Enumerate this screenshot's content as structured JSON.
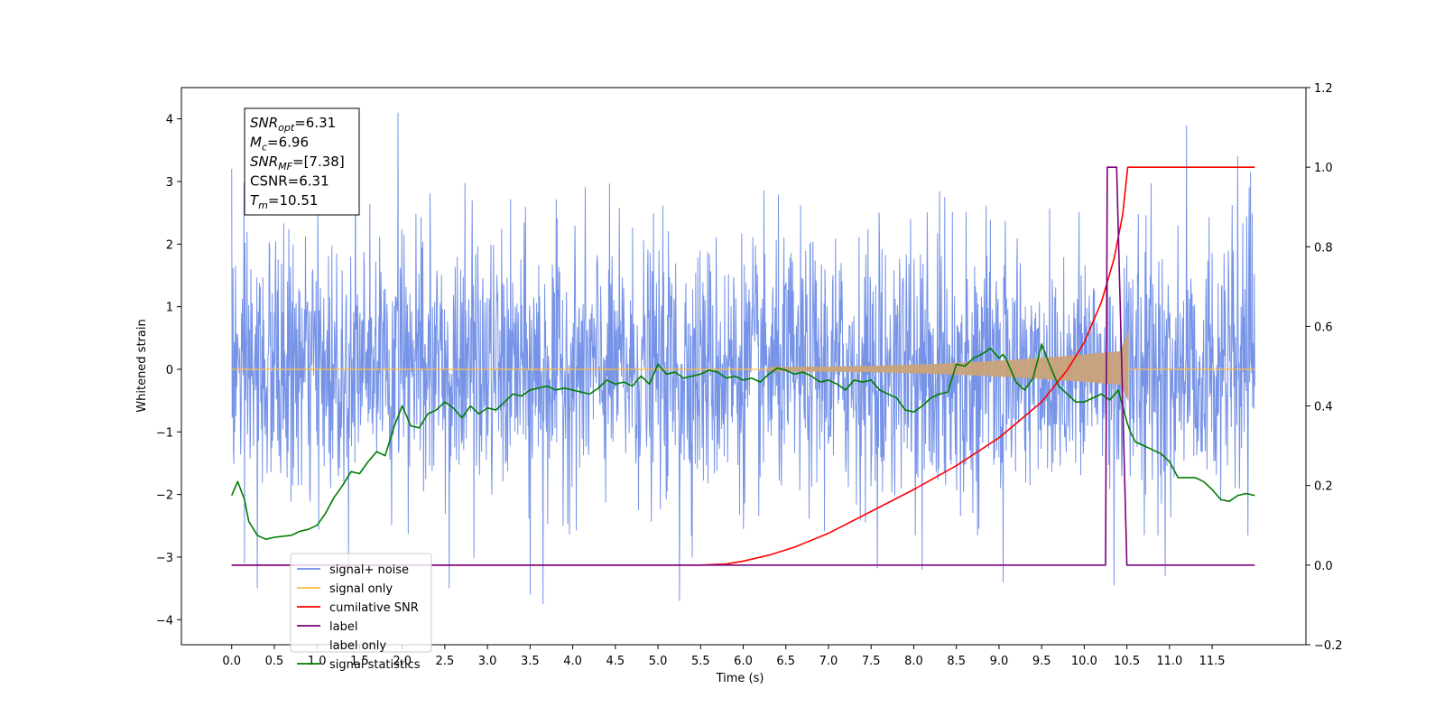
{
  "chart_data": {
    "type": "line",
    "title": "",
    "xlabel": "Time (s)",
    "ylabel": "Whitened strain",
    "xlim": [
      -0.59,
      12.6
    ],
    "ylim": [
      -4.4,
      4.5
    ],
    "y2lim": [
      -0.2,
      1.2
    ],
    "x_ticks": [
      0.0,
      0.5,
      1.0,
      1.5,
      2.0,
      2.5,
      3.0,
      3.5,
      4.0,
      4.5,
      5.0,
      5.5,
      6.0,
      6.5,
      7.0,
      7.5,
      8.0,
      8.5,
      9.0,
      9.5,
      10.0,
      10.5,
      11.0,
      11.5
    ],
    "x_tick_labels": [
      "0.0",
      "0.5",
      "1.0",
      "1.5",
      "2.0",
      "2.5",
      "3.0",
      "3.5",
      "4.0",
      "4.5",
      "5.0",
      "5.5",
      "6.0",
      "6.5",
      "7.0",
      "7.5",
      "8.0",
      "8.5",
      "9.0",
      "9.5",
      "10.0",
      "10.5",
      "11.0",
      "11.5"
    ],
    "y_ticks": [
      -4,
      -3,
      -2,
      -1,
      0,
      1,
      2,
      3,
      4
    ],
    "y_tick_labels": [
      "−4",
      "−3",
      "−2",
      "−1",
      "0",
      "1",
      "2",
      "3",
      "4"
    ],
    "y2_ticks": [
      -0.2,
      0.0,
      0.2,
      0.4,
      0.6,
      0.8,
      1.0,
      1.2
    ],
    "y2_tick_labels": [
      "−0.2",
      "0.0",
      "0.2",
      "0.4",
      "0.6",
      "0.8",
      "1.0",
      "1.2"
    ],
    "grid": false,
    "legend_position": "lower-left",
    "annotation": {
      "lines": [
        {
          "main": "SNR",
          "sub": "opt",
          "rest": "=6.31"
        },
        {
          "main": "M",
          "sub": "c",
          "rest": "=6.96"
        },
        {
          "main": "SNR",
          "sub": "MF",
          "rest": "=[7.38]"
        },
        {
          "main": "CSNR",
          "sub": "",
          "rest": "=6.31"
        },
        {
          "main": "T",
          "sub": "m",
          "rest": "=10.51"
        }
      ]
    },
    "series": [
      {
        "name": "signal+ noise",
        "axis": "left",
        "color": "#6f8de6",
        "x_start": 0.0,
        "x_end": 12.0,
        "noise_sigma": 1.0,
        "envelope_max": 3.3,
        "envelope_min": -3.2,
        "spikes": [
          {
            "x": 0.0,
            "y": 3.2
          },
          {
            "x": 0.15,
            "y": -3.1
          },
          {
            "x": 0.3,
            "y": -3.5
          },
          {
            "x": 1.45,
            "y": 3.7
          },
          {
            "x": 1.95,
            "y": 4.1
          },
          {
            "x": 2.55,
            "y": -3.5
          },
          {
            "x": 3.5,
            "y": -3.6
          },
          {
            "x": 3.65,
            "y": -3.75
          },
          {
            "x": 5.25,
            "y": -3.7
          },
          {
            "x": 8.1,
            "y": -3.2
          },
          {
            "x": 9.05,
            "y": -3.4
          },
          {
            "x": 10.35,
            "y": -3.45
          },
          {
            "x": 10.95,
            "y": -3.3
          },
          {
            "x": 11.2,
            "y": 3.9
          },
          {
            "x": 11.8,
            "y": 3.4
          }
        ]
      },
      {
        "name": "signal only",
        "axis": "left",
        "color": "#ffbf3f",
        "fill_color": "#c9a27a",
        "x_start": 0.0,
        "x_end": 12.0,
        "chirp_visible_from": 6.3,
        "merger_time": 10.5,
        "peak_amplitude": 0.6
      },
      {
        "name": "cumilative SNR",
        "axis": "right",
        "color": "#ff0000",
        "points": [
          [
            0.0,
            0.0
          ],
          [
            5.5,
            0.0
          ],
          [
            5.8,
            0.003
          ],
          [
            6.0,
            0.01
          ],
          [
            6.3,
            0.025
          ],
          [
            6.6,
            0.045
          ],
          [
            7.0,
            0.08
          ],
          [
            7.5,
            0.135
          ],
          [
            8.0,
            0.19
          ],
          [
            8.5,
            0.25
          ],
          [
            9.0,
            0.32
          ],
          [
            9.5,
            0.41
          ],
          [
            9.8,
            0.49
          ],
          [
            10.0,
            0.56
          ],
          [
            10.2,
            0.66
          ],
          [
            10.35,
            0.77
          ],
          [
            10.45,
            0.88
          ],
          [
            10.51,
            1.0
          ],
          [
            12.0,
            1.0
          ]
        ]
      },
      {
        "name": "label",
        "axis": "right",
        "color": "#7a007a",
        "points": [
          [
            0.0,
            0.0
          ],
          [
            10.25,
            0.0
          ],
          [
            10.27,
            1.0
          ],
          [
            10.38,
            1.0
          ],
          [
            10.5,
            0.0
          ],
          [
            12.0,
            0.0
          ]
        ]
      },
      {
        "name": "label only",
        "axis": "right",
        "color": "#dddddd",
        "points": []
      },
      {
        "name": "signal statistics",
        "axis": "right",
        "color": "#007d00",
        "points": [
          [
            0.0,
            0.175
          ],
          [
            0.07,
            0.21
          ],
          [
            0.15,
            0.165
          ],
          [
            0.2,
            0.11
          ],
          [
            0.3,
            0.075
          ],
          [
            0.4,
            0.065
          ],
          [
            0.5,
            0.07
          ],
          [
            0.7,
            0.075
          ],
          [
            0.8,
            0.085
          ],
          [
            0.9,
            0.09
          ],
          [
            1.0,
            0.1
          ],
          [
            1.1,
            0.13
          ],
          [
            1.2,
            0.17
          ],
          [
            1.3,
            0.2
          ],
          [
            1.4,
            0.235
          ],
          [
            1.5,
            0.23
          ],
          [
            1.6,
            0.26
          ],
          [
            1.7,
            0.285
          ],
          [
            1.8,
            0.275
          ],
          [
            1.9,
            0.345
          ],
          [
            2.0,
            0.4
          ],
          [
            2.1,
            0.35
          ],
          [
            2.2,
            0.345
          ],
          [
            2.3,
            0.38
          ],
          [
            2.4,
            0.39
          ],
          [
            2.5,
            0.41
          ],
          [
            2.6,
            0.395
          ],
          [
            2.7,
            0.37
          ],
          [
            2.8,
            0.4
          ],
          [
            2.9,
            0.38
          ],
          [
            3.0,
            0.395
          ],
          [
            3.1,
            0.39
          ],
          [
            3.2,
            0.41
          ],
          [
            3.3,
            0.43
          ],
          [
            3.4,
            0.425
          ],
          [
            3.5,
            0.44
          ],
          [
            3.6,
            0.445
          ],
          [
            3.7,
            0.45
          ],
          [
            3.8,
            0.44
          ],
          [
            3.9,
            0.445
          ],
          [
            4.0,
            0.44
          ],
          [
            4.2,
            0.43
          ],
          [
            4.3,
            0.445
          ],
          [
            4.4,
            0.465
          ],
          [
            4.5,
            0.455
          ],
          [
            4.6,
            0.46
          ],
          [
            4.7,
            0.45
          ],
          [
            4.8,
            0.475
          ],
          [
            4.9,
            0.455
          ],
          [
            5.0,
            0.505
          ],
          [
            5.1,
            0.48
          ],
          [
            5.2,
            0.485
          ],
          [
            5.3,
            0.47
          ],
          [
            5.4,
            0.475
          ],
          [
            5.5,
            0.48
          ],
          [
            5.6,
            0.49
          ],
          [
            5.7,
            0.485
          ],
          [
            5.8,
            0.47
          ],
          [
            5.9,
            0.475
          ],
          [
            6.0,
            0.465
          ],
          [
            6.1,
            0.47
          ],
          [
            6.2,
            0.46
          ],
          [
            6.3,
            0.48
          ],
          [
            6.4,
            0.495
          ],
          [
            6.5,
            0.49
          ],
          [
            6.6,
            0.48
          ],
          [
            6.7,
            0.485
          ],
          [
            6.8,
            0.475
          ],
          [
            6.9,
            0.46
          ],
          [
            7.0,
            0.465
          ],
          [
            7.1,
            0.455
          ],
          [
            7.2,
            0.44
          ],
          [
            7.3,
            0.465
          ],
          [
            7.4,
            0.46
          ],
          [
            7.5,
            0.465
          ],
          [
            7.6,
            0.44
          ],
          [
            7.8,
            0.42
          ],
          [
            7.9,
            0.39
          ],
          [
            8.0,
            0.385
          ],
          [
            8.1,
            0.4
          ],
          [
            8.2,
            0.42
          ],
          [
            8.3,
            0.43
          ],
          [
            8.4,
            0.435
          ],
          [
            8.5,
            0.505
          ],
          [
            8.6,
            0.5
          ],
          [
            8.7,
            0.52
          ],
          [
            8.8,
            0.53
          ],
          [
            8.9,
            0.545
          ],
          [
            9.0,
            0.52
          ],
          [
            9.05,
            0.53
          ],
          [
            9.1,
            0.51
          ],
          [
            9.2,
            0.46
          ],
          [
            9.3,
            0.44
          ],
          [
            9.4,
            0.47
          ],
          [
            9.5,
            0.555
          ],
          [
            9.6,
            0.5
          ],
          [
            9.7,
            0.45
          ],
          [
            9.8,
            0.43
          ],
          [
            9.9,
            0.41
          ],
          [
            10.0,
            0.41
          ],
          [
            10.1,
            0.42
          ],
          [
            10.2,
            0.43
          ],
          [
            10.3,
            0.415
          ],
          [
            10.4,
            0.44
          ],
          [
            10.5,
            0.36
          ],
          [
            10.55,
            0.33
          ],
          [
            10.6,
            0.31
          ],
          [
            10.7,
            0.3
          ],
          [
            10.8,
            0.29
          ],
          [
            10.9,
            0.28
          ],
          [
            11.0,
            0.26
          ],
          [
            11.1,
            0.22
          ],
          [
            11.2,
            0.22
          ],
          [
            11.3,
            0.22
          ],
          [
            11.4,
            0.21
          ],
          [
            11.5,
            0.19
          ],
          [
            11.6,
            0.165
          ],
          [
            11.7,
            0.16
          ],
          [
            11.8,
            0.175
          ],
          [
            11.9,
            0.18
          ],
          [
            12.0,
            0.175
          ]
        ]
      }
    ]
  }
}
